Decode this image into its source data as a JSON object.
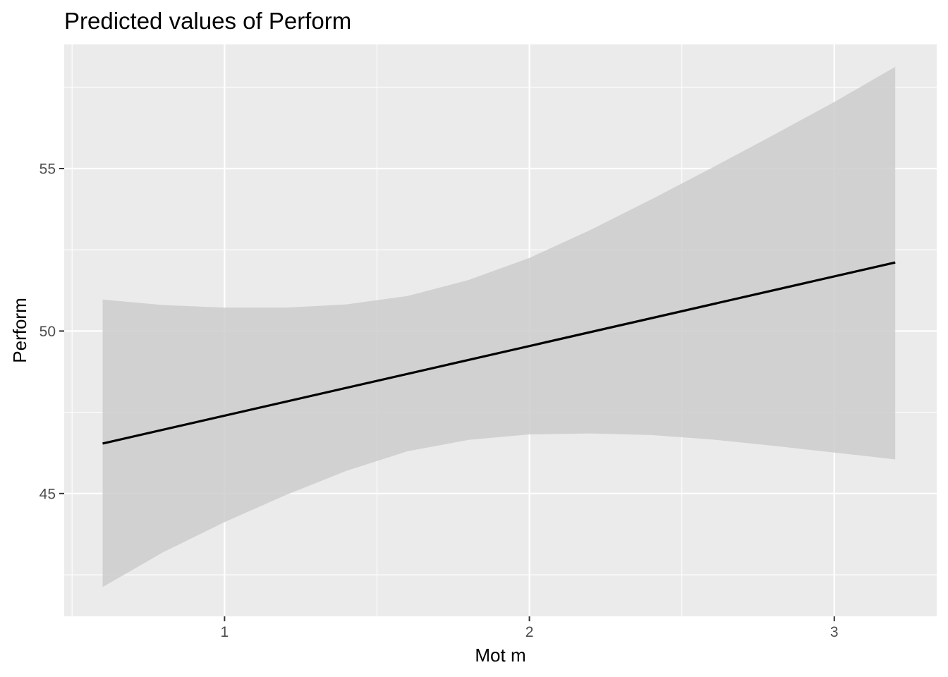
{
  "chart_data": {
    "type": "line",
    "title": "Predicted values of Perform",
    "xlabel": "Mot m",
    "ylabel": "Perform",
    "xlim": [
      0.474,
      3.336
    ],
    "ylim": [
      41.22,
      58.82
    ],
    "x_ticks": [
      1,
      2,
      3
    ],
    "x_tick_labels": [
      "1",
      "2",
      "3"
    ],
    "x_minor_ticks": [
      0.5,
      1.5,
      2.5
    ],
    "y_ticks": [
      45,
      50,
      55
    ],
    "y_tick_labels": [
      "45",
      "50",
      "55"
    ],
    "y_minor_ticks": [
      42.5,
      47.5,
      52.5,
      57.5
    ],
    "grid": true,
    "legend": "none",
    "series": [
      {
        "x": [
          0.6,
          3.2
        ],
        "values": [
          46.54,
          52.11
        ]
      }
    ],
    "confidence_band": {
      "x": [
        0.6,
        0.8,
        1.0,
        1.2,
        1.4,
        1.6,
        1.8,
        2.0,
        2.2,
        2.4,
        2.6,
        2.8,
        3.0,
        3.2
      ],
      "lower": [
        42.12,
        43.2,
        44.12,
        44.95,
        45.7,
        46.3,
        46.65,
        46.82,
        46.85,
        46.8,
        46.66,
        46.47,
        46.26,
        46.05
      ],
      "upper": [
        50.97,
        50.8,
        50.72,
        50.72,
        50.82,
        51.08,
        51.57,
        52.25,
        53.11,
        54.05,
        55.03,
        56.03,
        57.05,
        58.13
      ]
    },
    "colors": {
      "panel": "#ebebeb",
      "grid": "#ffffff",
      "line": "#000000",
      "band": "#cccccc"
    }
  }
}
